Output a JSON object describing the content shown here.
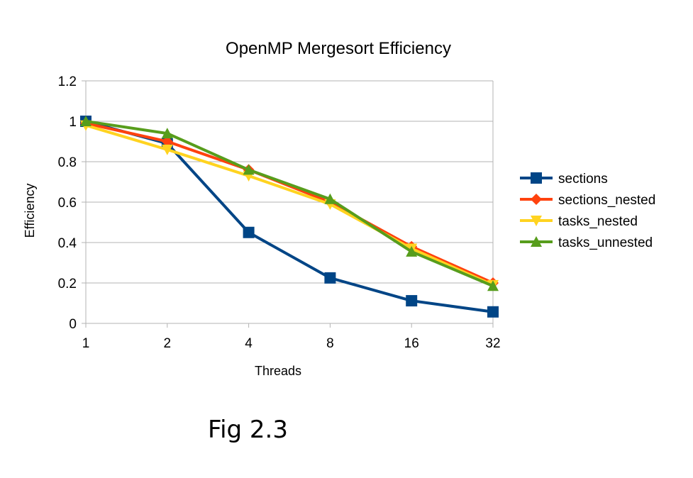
{
  "chart_data": {
    "type": "line",
    "title": "OpenMP Mergesort Efficiency",
    "xlabel": "Threads",
    "ylabel": "Efficiency",
    "categories": [
      "1",
      "2",
      "4",
      "8",
      "16",
      "32"
    ],
    "ylim": [
      0,
      1.2
    ],
    "yticks": [
      "0",
      "0.2",
      "0.4",
      "0.6",
      "0.8",
      "1",
      "1.2"
    ],
    "grid": "horizontal",
    "legend_position": "right",
    "series": [
      {
        "name": "sections",
        "color": "#004586",
        "marker": "square",
        "values": [
          1.0,
          0.89,
          0.45,
          0.225,
          0.112,
          0.057
        ]
      },
      {
        "name": "sections_nested",
        "color": "#ff420e",
        "marker": "diamond",
        "values": [
          0.99,
          0.9,
          0.76,
          0.6,
          0.38,
          0.2
        ]
      },
      {
        "name": "tasks_nested",
        "color": "#ffd320",
        "marker": "triangle-down",
        "values": [
          0.98,
          0.86,
          0.73,
          0.59,
          0.37,
          0.19
        ]
      },
      {
        "name": "tasks_unnested",
        "color": "#579d1c",
        "marker": "triangle-up",
        "values": [
          1.0,
          0.94,
          0.76,
          0.615,
          0.355,
          0.185
        ]
      }
    ]
  },
  "caption": "Fig 2.3"
}
